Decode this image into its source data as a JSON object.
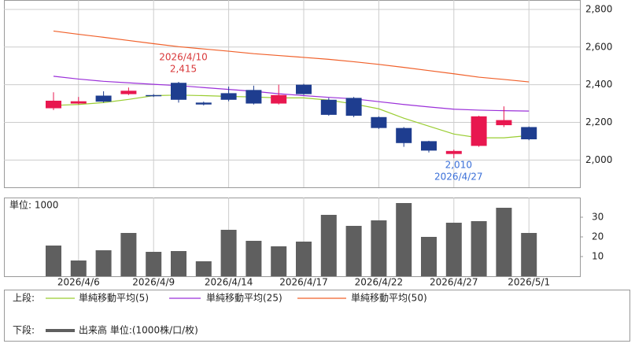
{
  "chart_data": [
    {
      "type": "candlestick",
      "categories": [
        null,
        "2026/4/6",
        null,
        null,
        "2026/4/9",
        null,
        null,
        "2026/4/14",
        null,
        null,
        "2026/4/17",
        null,
        null,
        "2026/4/22",
        null,
        null,
        "2026/4/27",
        null,
        null,
        "2026/5/1"
      ],
      "open": [
        2275,
        2300,
        2342,
        2350,
        2345,
        2410,
        2305,
        2355,
        2372,
        2300,
        2400,
        2320,
        2330,
        2228,
        2170,
        2100,
        2032,
        2075,
        2185,
        2175
      ],
      "high": [
        2360,
        2335,
        2365,
        2385,
        2350,
        2415,
        2310,
        2390,
        2395,
        2400,
        2405,
        2330,
        2335,
        2232,
        2175,
        2102,
        2055,
        2235,
        2285,
        2178
      ],
      "low": [
        2265,
        2295,
        2305,
        2345,
        2335,
        2305,
        2290,
        2312,
        2295,
        2295,
        2345,
        2235,
        2228,
        2165,
        2070,
        2040,
        2010,
        2070,
        2175,
        2105
      ],
      "close": [
        2315,
        2312,
        2310,
        2368,
        2342,
        2320,
        2295,
        2320,
        2300,
        2345,
        2350,
        2240,
        2235,
        2170,
        2090,
        2050,
        2048,
        2232,
        2212,
        2110
      ],
      "up_color": "#e8174f",
      "down_color": "#1e3d8f",
      "ylim": [
        1855,
        2850
      ],
      "yticks": [
        {
          "value": 2000,
          "label": "2,000"
        },
        {
          "value": 2200,
          "label": "2,200"
        },
        {
          "value": 2400,
          "label": "2,400"
        },
        {
          "value": 2600,
          "label": "2,600"
        },
        {
          "value": 2800,
          "label": "2,800"
        }
      ],
      "grid": true,
      "legend_label": "上段:",
      "series": [
        {
          "name": "単純移動平均(5)",
          "color": "#9acd32",
          "values": [
            2290,
            2295,
            2305,
            2322,
            2342,
            2345,
            2342,
            2338,
            2335,
            2330,
            2330,
            2318,
            2298,
            2272,
            2222,
            2180,
            2138,
            2118,
            2118,
            2130
          ]
        },
        {
          "name": "単純移動平均(25)",
          "color": "#9b30d9",
          "values": [
            2445,
            2430,
            2418,
            2410,
            2402,
            2395,
            2385,
            2375,
            2365,
            2352,
            2342,
            2333,
            2325,
            2310,
            2295,
            2282,
            2270,
            2265,
            2262,
            2260
          ]
        },
        {
          "name": "単純移動平均(50)",
          "color": "#f0602a",
          "values": [
            2685,
            2668,
            2652,
            2635,
            2618,
            2602,
            2590,
            2578,
            2565,
            2555,
            2545,
            2535,
            2522,
            2508,
            2492,
            2475,
            2458,
            2440,
            2428,
            2415
          ]
        }
      ],
      "annotations": [
        {
          "text": "2026/4/10",
          "value": 2415,
          "value_label": "2,415",
          "color": "#d9383a"
        },
        {
          "text": "2026/4/27",
          "value": 2010,
          "value_label": "2,010",
          "color": "#3a6fd8"
        }
      ]
    },
    {
      "type": "bar",
      "title": "単位: 1000",
      "legend_label": "下段:",
      "name": "出来高 単位:(1000株/口/枚)",
      "color": "#5f5f5f",
      "values": [
        15.6,
        8,
        13.2,
        22,
        12.4,
        12.8,
        7.6,
        23.6,
        18,
        15.2,
        17.6,
        31.2,
        25.6,
        28.4,
        37.2,
        20,
        27.2,
        28,
        34.8,
        22
      ],
      "ylim": [
        0,
        40
      ],
      "yticks": [
        10,
        20,
        30
      ],
      "grid": true
    }
  ]
}
